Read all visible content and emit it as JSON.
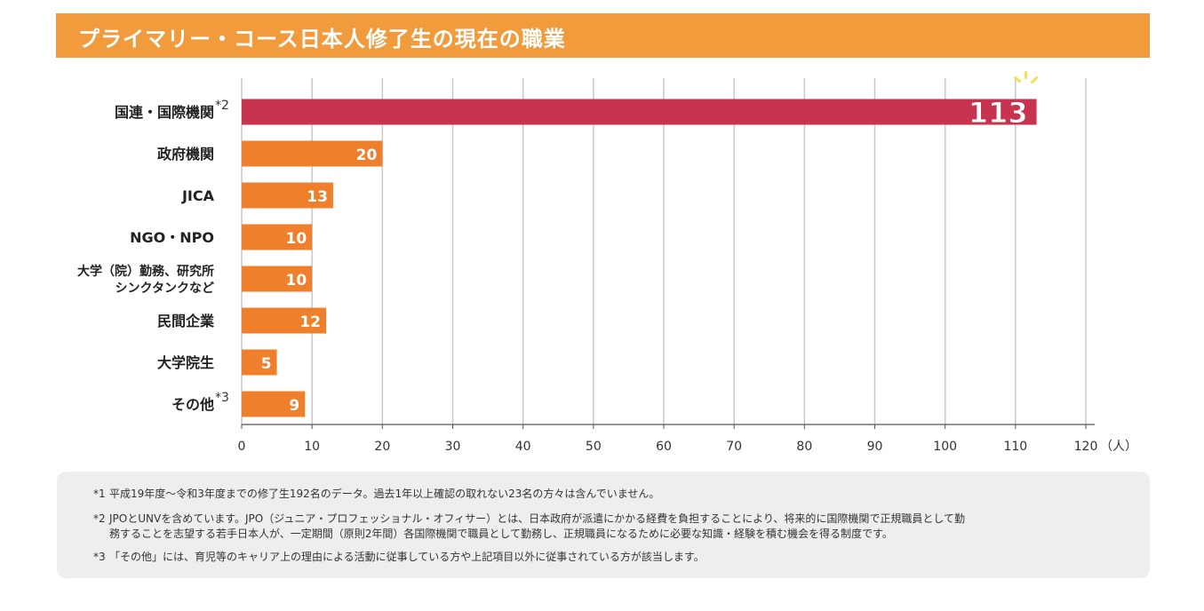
{
  "colors": {
    "header": "#f29b3d",
    "bar": "#f07f2c",
    "highlight_bar": "#c8334f",
    "grid": "#c8c8c8",
    "burst": "#f4e04d"
  },
  "chart_data": {
    "type": "bar",
    "orientation": "horizontal",
    "title": "プライマリー・コース日本人修了生の現在の職業",
    "categories": [
      {
        "label": "国連・国際機関",
        "sup": "*2"
      },
      {
        "label": "政府機関"
      },
      {
        "label": "JICA"
      },
      {
        "label": "NGO・NPO"
      },
      {
        "label": "大学（院）勤務、研究所",
        "label2": "シンクタンクなど"
      },
      {
        "label": "民間企業"
      },
      {
        "label": "大学院生"
      },
      {
        "label": "その他",
        "sup": "*3"
      }
    ],
    "values": [
      113,
      20,
      13,
      10,
      10,
      12,
      5,
      9
    ],
    "value_labels": [
      "113",
      "20",
      "13",
      "10",
      "10",
      "12",
      "5",
      "9"
    ],
    "highlight_index": 0,
    "xlim": [
      0,
      120
    ],
    "x_ticks": [
      "0",
      "10",
      "20",
      "30",
      "40",
      "50",
      "60",
      "70",
      "80",
      "90",
      "100",
      "110",
      "120"
    ],
    "x_unit": "（人）",
    "grid": true
  },
  "notes": [
    {
      "mark": "*1",
      "text": "平成19年度〜令和3年度までの修了生192名のデータ。過去1年以上確認の取れない23名の方々は含んでいません。"
    },
    {
      "mark": "*2",
      "text": "JPOとUNVを含めています。JPO（ジュニア・プロフェッショナル・オフィサー）とは、日本政府が派遣にかかる経費を負担することにより、将来的に国際機関で正規職員として勤",
      "text2": "務することを志望する若手日本人が、一定期間（原則2年間）各国際機関で職員として勤務し、正規職員になるために必要な知識・経験を積む機会を得る制度です。"
    },
    {
      "mark": "*3",
      "text": "「その他」には、育児等のキャリア上の理由による活動に従事している方や上記項目以外に従事されている方が該当します。"
    }
  ]
}
